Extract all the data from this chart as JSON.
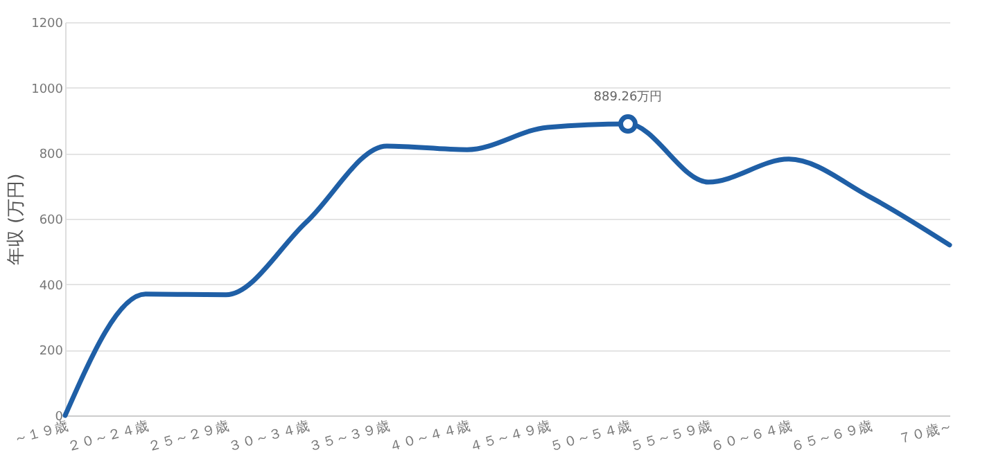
{
  "chart_data": {
    "type": "line",
    "ylabel": "年収 (万円)",
    "categories": [
      "～１９歳",
      "２０～２４歳",
      "２５～２９歳",
      "３０～３４歳",
      "３５～３９歳",
      "４０～４４歳",
      "４５～４９歳",
      "５０～５４歳",
      "５５～５９歳",
      "６０～６４歳",
      "６５～６９歳",
      "７０歳～"
    ],
    "series": [
      {
        "color": "#1f5fa6",
        "values": [
          0,
          370,
          368,
          590,
          822,
          811,
          879,
          889.26,
          712,
          782,
          668,
          520
        ]
      }
    ],
    "ylim": [
      0,
      1200
    ],
    "yticks": [
      0,
      200,
      400,
      600,
      800,
      1000,
      1200
    ],
    "grid": "y",
    "marker": "none",
    "annotations": [
      {
        "text": "889.26万円",
        "x": "５０～５４歳",
        "y": 889.26
      }
    ]
  }
}
